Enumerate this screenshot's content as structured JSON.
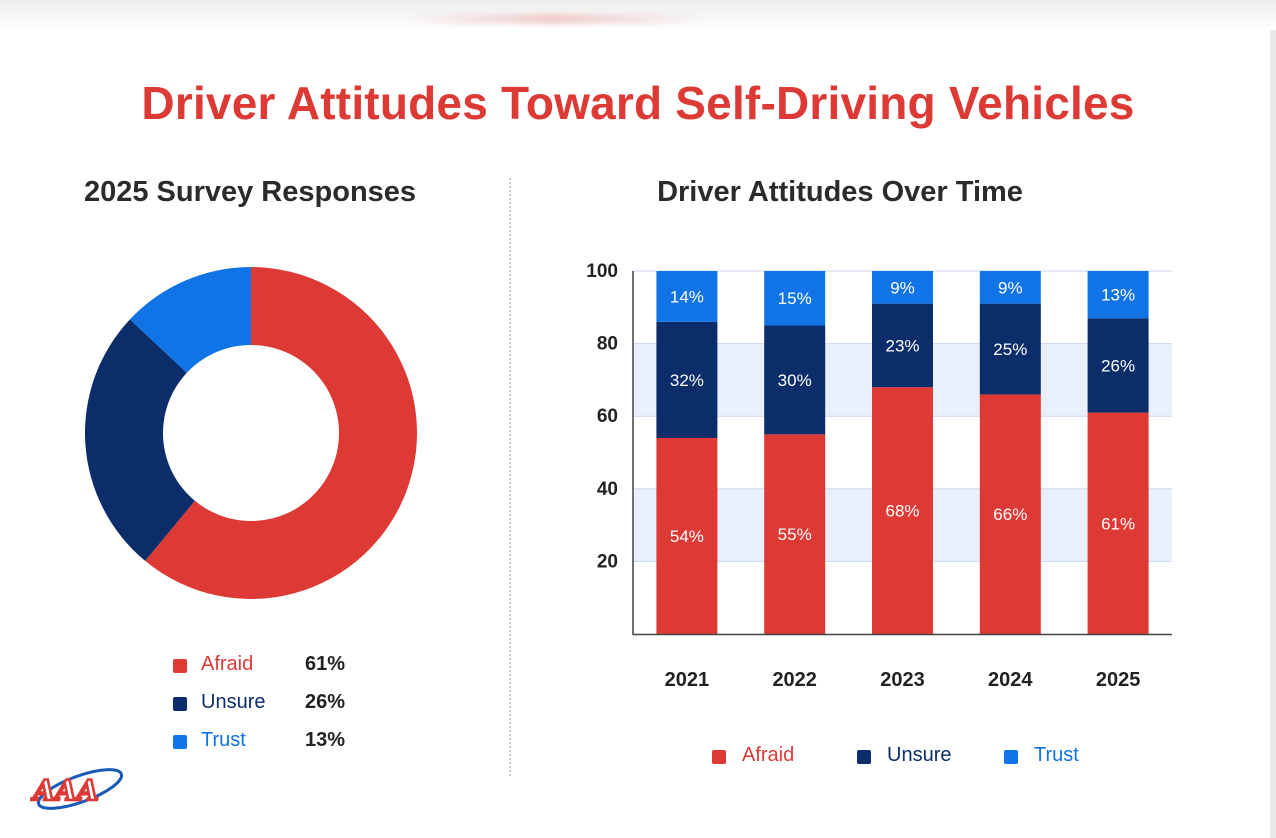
{
  "title": "Driver Attitudes Toward Self-Driving Vehicles",
  "colors": {
    "title": "#dd3a36",
    "afraid": "#de3a35",
    "unsure": "#0b2e6b",
    "trust": "#1174e6",
    "band": "#e9f0fb",
    "axis": "#444444"
  },
  "legend": [
    {
      "name": "Afraid",
      "color": "#de3a35",
      "value_label": "61%"
    },
    {
      "name": "Unsure",
      "color": "#0b2e6b",
      "value_label": "26%"
    },
    {
      "name": "Trust",
      "color": "#1174e6",
      "value_label": "13%"
    }
  ],
  "logo": {
    "text": "AAA"
  },
  "chart_data": [
    {
      "type": "pie",
      "donut": true,
      "title": "2025 Survey Responses",
      "labels": [
        "Afraid",
        "Unsure",
        "Trust"
      ],
      "values": [
        61,
        26,
        13
      ],
      "colors": [
        "#de3a35",
        "#0b2e6b",
        "#1174e6"
      ],
      "legend_position": "bottom"
    },
    {
      "type": "bar",
      "stacked": true,
      "title": "Driver Attitudes Over Time",
      "categories": [
        "2021",
        "2022",
        "2023",
        "2024",
        "2025"
      ],
      "series": [
        {
          "name": "Afraid",
          "color": "#de3a35",
          "values": [
            54,
            55,
            68,
            66,
            61
          ],
          "labels": [
            "54%",
            "55%",
            "68%",
            "66%",
            "61%"
          ]
        },
        {
          "name": "Unsure",
          "color": "#0b2e6b",
          "values": [
            32,
            30,
            23,
            25,
            26
          ],
          "labels": [
            "32%",
            "30%",
            "23%",
            "25%",
            "26%"
          ]
        },
        {
          "name": "Trust",
          "color": "#1174e6",
          "values": [
            14,
            15,
            9,
            9,
            13
          ],
          "labels": [
            "14%",
            "15%",
            "9%",
            "9%",
            "13%"
          ]
        }
      ],
      "ylim": [
        0,
        100
      ],
      "yticks": [
        "20",
        "40",
        "60",
        "80",
        "100"
      ],
      "legend_position": "bottom",
      "grid_bands": true
    }
  ]
}
